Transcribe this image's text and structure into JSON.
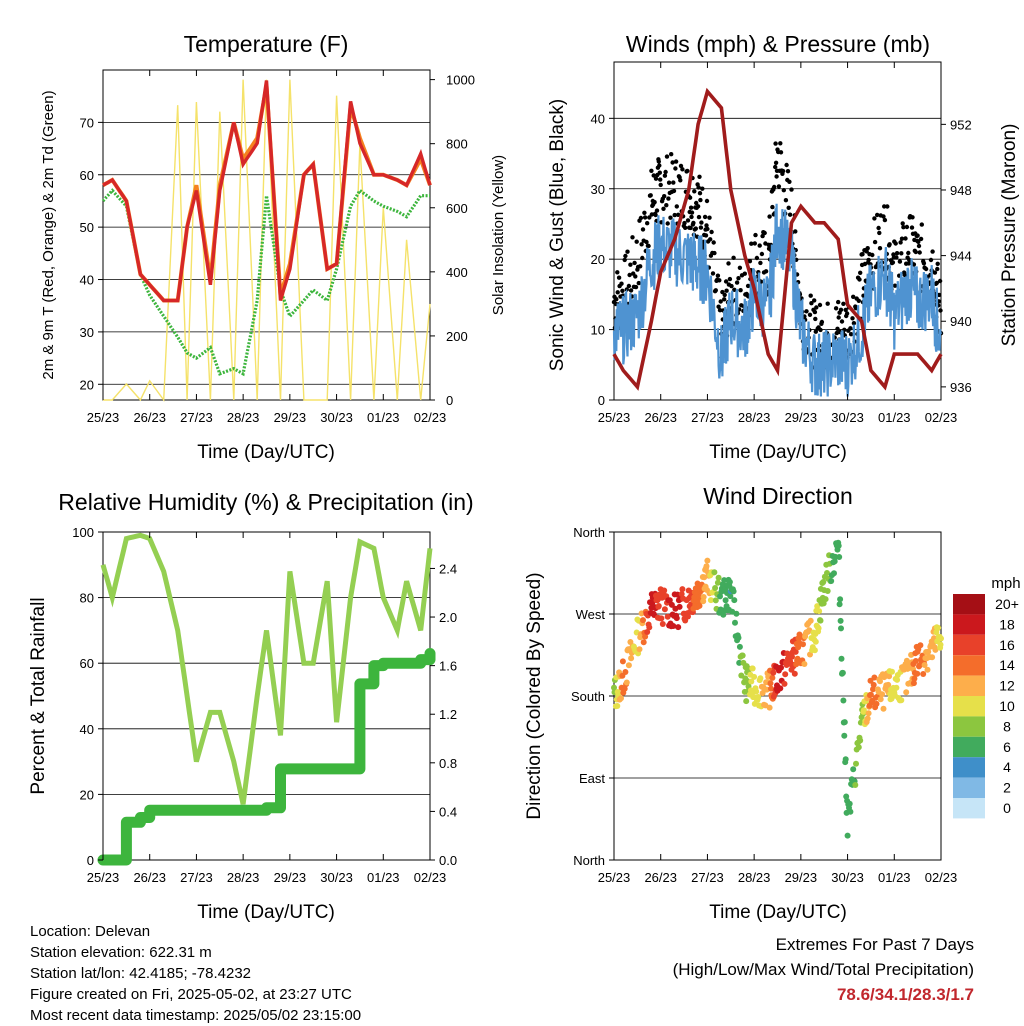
{
  "colors": {
    "red": "#d62728",
    "orange": "#f5821f",
    "green": "#3db53d",
    "yellow": "#f5e26a",
    "black": "#000000",
    "blue": "#4f93d1",
    "maroon": "#a01c1c",
    "rh_green": "#94cf52",
    "precip_green": "#3db53d"
  },
  "x_ticks": [
    "25/23",
    "26/23",
    "27/23",
    "28/23",
    "29/23",
    "30/23",
    "01/23",
    "02/23"
  ],
  "panels": {
    "temperature": {
      "title": "Temperature (F)",
      "xlabel": "Time (Day/UTC)",
      "ylabel_left": "2m & 9m T (Red, Orange) & 2m Td (Green)",
      "ylabel_right": "Solar Insolation (Yellow)",
      "left_ticks": [
        "20",
        "30",
        "40",
        "50",
        "60",
        "70"
      ],
      "right_ticks": [
        "0",
        "200",
        "400",
        "600",
        "800",
        "1000"
      ]
    },
    "winds": {
      "title": "Winds (mph) & Pressure (mb)",
      "xlabel": "Time (Day/UTC)",
      "ylabel_left": "Sonic Wind & Gust (Blue, Black)",
      "ylabel_right": "Station Pressure (Maroon)",
      "left_ticks": [
        "0",
        "10",
        "20",
        "30",
        "40"
      ],
      "right_ticks": [
        "936",
        "940",
        "944",
        "948",
        "952"
      ]
    },
    "humidity": {
      "title": "Relative Humidity (%) & Precipitation (in)",
      "xlabel": "Time (Day/UTC)",
      "ylabel_left": "Percent & Total Rainfall",
      "left_ticks": [
        "0",
        "20",
        "40",
        "60",
        "80",
        "100"
      ],
      "right_ticks": [
        "0.0",
        "0.4",
        "0.8",
        "1.2",
        "1.6",
        "2.0",
        "2.4"
      ]
    },
    "direction": {
      "title": "Wind Direction",
      "xlabel": "Time (Day/UTC)",
      "ylabel_left": "Direction (Colored By Speed)",
      "left_ticks": [
        "North",
        "East",
        "South",
        "West",
        "North"
      ],
      "legend_title": "mph",
      "legend_labels": [
        "20+",
        "18",
        "16",
        "14",
        "12",
        "10",
        "8",
        "6",
        "4",
        "2",
        "0"
      ],
      "legend_colors": [
        "#a50f15",
        "#cb181d",
        "#e8412a",
        "#f46d2b",
        "#fdae4b",
        "#e6e04a",
        "#8cc63f",
        "#41ab5d",
        "#3f8fc9",
        "#80b9e5",
        "#c6e5f7"
      ]
    }
  },
  "info": {
    "location": "Location: Delevan",
    "elevation": "Station elevation: 622.31 m",
    "latlon": "Station lat/lon: 42.4185; -78.4232",
    "created": "Figure created on Fri, 2025-05-02, at 23:27 UTC",
    "recent": "Most recent data timestamp: 2025/05/02 23:15:00"
  },
  "extremes": {
    "line1": "Extremes For Past 7 Days",
    "line2": "(High/Low/Max Wind/Total Precipitation)",
    "values": "78.6/34.1/28.3/1.7"
  },
  "chart_data": [
    {
      "type": "line",
      "title": "Temperature (F)",
      "xlabel": "Time (Day/UTC)",
      "ylabel": "2m & 9m T (Red, Orange) & 2m Td (Green)",
      "ylabel_right": "Solar Insolation (Yellow)",
      "x": [
        0,
        0.2,
        0.5,
        0.8,
        1.0,
        1.3,
        1.6,
        1.8,
        2.0,
        2.3,
        2.5,
        2.8,
        3.0,
        3.3,
        3.5,
        3.8,
        4.0,
        4.3,
        4.5,
        4.8,
        5.0,
        5.3,
        5.5,
        5.8,
        6.0,
        6.3,
        6.5,
        6.8,
        7.0
      ],
      "ylim": [
        17,
        80
      ],
      "y2lim": [
        0,
        1030
      ],
      "series": [
        {
          "name": "2m T",
          "values": [
            58,
            59,
            55,
            41,
            39,
            36,
            36,
            50,
            57,
            39,
            57,
            70,
            62,
            66,
            78,
            36,
            42,
            60,
            62,
            42,
            43,
            74,
            66,
            60,
            60,
            59,
            58,
            64,
            58
          ]
        },
        {
          "name": "9m T",
          "values": [
            58,
            59,
            55,
            41,
            39,
            36,
            36,
            50,
            58,
            40,
            58,
            70,
            63,
            67,
            77,
            37,
            43,
            60,
            62,
            42,
            43,
            73,
            67,
            60,
            60,
            59,
            58,
            63,
            58
          ]
        },
        {
          "name": "2m Td",
          "values": [
            55,
            57,
            54,
            41,
            37,
            33,
            29,
            26,
            25,
            27,
            22,
            23,
            22,
            36,
            56,
            38,
            33,
            36,
            38,
            36,
            42,
            54,
            57,
            55,
            54,
            53,
            52,
            56,
            56
          ]
        },
        {
          "name": "Solar Insolation",
          "values": [
            0,
            0,
            50,
            0,
            60,
            0,
            920,
            0,
            930,
            0,
            900,
            0,
            1000,
            0,
            1000,
            0,
            1000,
            0,
            0,
            0,
            950,
            0,
            800,
            0,
            600,
            0,
            500,
            0,
            300
          ]
        }
      ]
    },
    {
      "type": "line",
      "title": "Winds (mph) & Pressure (mb)",
      "xlabel": "Time (Day/UTC)",
      "ylabel": "Sonic Wind & Gust (Blue, Black)",
      "ylabel_right": "Station Pressure (Maroon)",
      "x": [
        0,
        0.2,
        0.5,
        0.8,
        1.0,
        1.3,
        1.6,
        1.8,
        2.0,
        2.3,
        2.5,
        2.8,
        3.0,
        3.3,
        3.5,
        3.8,
        4.0,
        4.3,
        4.5,
        4.8,
        5.0,
        5.3,
        5.5,
        5.8,
        6.0,
        6.3,
        6.5,
        6.8,
        7.0
      ],
      "ylim": [
        0,
        48
      ],
      "y2lim": [
        935.2,
        955.8
      ],
      "series": [
        {
          "name": "Sonic Wind",
          "values": [
            10,
            10,
            12,
            20,
            22,
            21,
            20,
            19,
            18,
            6,
            12,
            10,
            15,
            13,
            25,
            20,
            10,
            5,
            5,
            6,
            5,
            10,
            15,
            18,
            12,
            16,
            14,
            15,
            8
          ]
        },
        {
          "name": "Gust",
          "values": [
            14,
            15,
            20,
            28,
            30,
            30,
            29,
            28,
            24,
            10,
            16,
            14,
            20,
            19,
            35,
            26,
            13,
            9,
            9,
            10,
            10,
            16,
            20,
            24,
            18,
            22,
            20,
            20,
            12
          ]
        },
        {
          "name": "Station Pressure",
          "values": [
            938,
            937,
            936,
            940,
            943,
            945,
            948,
            952,
            954,
            953,
            948,
            944,
            942,
            938,
            937,
            946,
            947,
            946,
            946,
            945,
            941,
            940,
            937,
            936,
            938,
            938,
            938,
            937,
            938
          ]
        }
      ]
    },
    {
      "type": "line",
      "title": "Relative Humidity (%) & Precipitation (in)",
      "xlabel": "Time (Day/UTC)",
      "ylabel": "Percent & Total Rainfall",
      "x": [
        0,
        0.2,
        0.5,
        0.8,
        1.0,
        1.3,
        1.6,
        1.8,
        2.0,
        2.3,
        2.5,
        2.8,
        3.0,
        3.3,
        3.5,
        3.8,
        4.0,
        4.3,
        4.5,
        4.8,
        5.0,
        5.3,
        5.5,
        5.8,
        6.0,
        6.3,
        6.5,
        6.8,
        7.0
      ],
      "ylim": [
        0,
        100
      ],
      "y2lim": [
        0,
        2.7
      ],
      "series": [
        {
          "name": "Relative Humidity",
          "values": [
            90,
            80,
            98,
            99,
            98,
            88,
            70,
            50,
            30,
            45,
            45,
            30,
            17,
            50,
            70,
            38,
            88,
            60,
            60,
            85,
            42,
            80,
            97,
            95,
            80,
            70,
            85,
            70,
            95
          ]
        },
        {
          "name": "Total Precipitation",
          "values": [
            0,
            0,
            0.31,
            0.35,
            0.41,
            0.41,
            0.41,
            0.41,
            0.41,
            0.41,
            0.41,
            0.41,
            0.41,
            0.41,
            0.43,
            0.75,
            0.75,
            0.75,
            0.75,
            0.75,
            0.75,
            0.75,
            1.45,
            1.6,
            1.62,
            1.62,
            1.62,
            1.65,
            1.7
          ]
        }
      ]
    },
    {
      "type": "scatter",
      "title": "Wind Direction",
      "xlabel": "Time (Day/UTC)",
      "ylabel": "Direction (Colored By Speed)",
      "y_categories": [
        "North",
        "East",
        "South",
        "West",
        "North"
      ],
      "ylim": [
        0,
        360
      ],
      "x": [
        0,
        0.2,
        0.5,
        0.8,
        1.0,
        1.3,
        1.6,
        1.8,
        2.0,
        2.3,
        2.5,
        2.8,
        3.0,
        3.3,
        3.5,
        3.8,
        4.0,
        4.3,
        4.5,
        4.8,
        5.0,
        5.3,
        5.5,
        5.8,
        6.0,
        6.3,
        6.5,
        6.8,
        7.0
      ],
      "values": [
        180,
        200,
        245,
        275,
        280,
        272,
        285,
        295,
        310,
        285,
        295,
        195,
        190,
        185,
        200,
        220,
        230,
        250,
        300,
        345,
        40,
        150,
        180,
        185,
        190,
        200,
        220,
        230,
        250
      ],
      "speeds": [
        8,
        14,
        10,
        18,
        16,
        18,
        16,
        14,
        12,
        6,
        5,
        8,
        10,
        12,
        18,
        16,
        14,
        10,
        8,
        6,
        6,
        8,
        14,
        12,
        10,
        12,
        14,
        12,
        10
      ]
    }
  ]
}
